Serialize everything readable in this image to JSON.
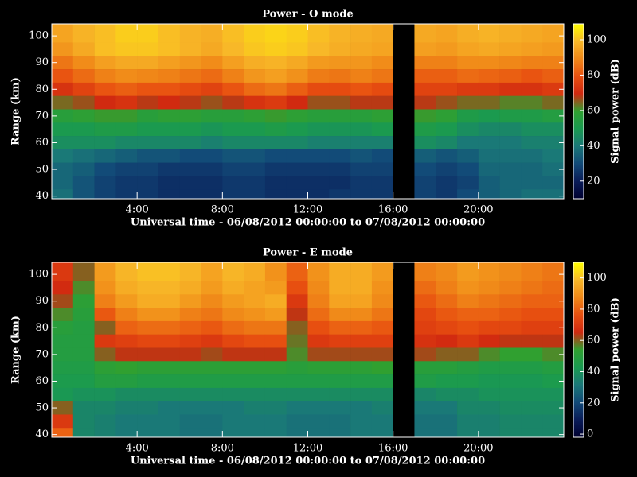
{
  "chart_data": [
    {
      "type": "heatmap",
      "title": "Power - O mode",
      "xlabel": "Universal time - 06/08/2012 00:00:00 to 07/08/2012 00:00:00",
      "ylabel": "Range (km)",
      "colorbar_label": "Signal power (dB)",
      "xlim": [
        0,
        24
      ],
      "xticks": [
        {
          "value": 4,
          "label": "4:00"
        },
        {
          "value": 8,
          "label": "8:00"
        },
        {
          "value": 12,
          "label": "12:00"
        },
        {
          "value": 16,
          "label": "16:00"
        },
        {
          "value": 20,
          "label": "20:00"
        }
      ],
      "ylim": [
        39,
        104.5
      ],
      "yticks": [
        40,
        50,
        60,
        70,
        80,
        90,
        100
      ],
      "zlim": [
        10,
        109
      ],
      "zticks": [
        20,
        40,
        60,
        80,
        100
      ],
      "colormap": [
        "#000030",
        "#0a1c58",
        "#124a78",
        "#1a7878",
        "#1a9a50",
        "#30a030",
        "#d02810",
        "#e85010",
        "#f08818",
        "#f8b828",
        "#ffff00"
      ],
      "x": [
        0.5,
        1.5,
        2.5,
        3.5,
        4.5,
        5.5,
        6.5,
        7.5,
        8.5,
        9.5,
        10.5,
        11.5,
        12.5,
        13.5,
        14.5,
        15.5,
        16.5,
        17.5,
        18.5,
        19.5,
        20.5,
        21.5,
        22.5,
        23.5
      ],
      "y": [
        100,
        95,
        90,
        85,
        80,
        75,
        70,
        65,
        60,
        55,
        50,
        45,
        40
      ],
      "z": [
        [
          95,
          98,
          100,
          102,
          102,
          100,
          98,
          97,
          100,
          102,
          103,
          102,
          100,
          98,
          97,
          96,
          null,
          96,
          95,
          97,
          98,
          97,
          96,
          95
        ],
        [
          92,
          96,
          100,
          101,
          101,
          100,
          98,
          96,
          99,
          101,
          102,
          101,
          99,
          97,
          96,
          95,
          null,
          94,
          93,
          95,
          96,
          95,
          94,
          93
        ],
        [
          86,
          90,
          94,
          96,
          96,
          94,
          92,
          90,
          94,
          97,
          98,
          96,
          93,
          92,
          92,
          90,
          null,
          88,
          88,
          90,
          90,
          89,
          88,
          88
        ],
        [
          80,
          84,
          88,
          90,
          89,
          88,
          86,
          84,
          88,
          92,
          94,
          91,
          87,
          86,
          88,
          86,
          null,
          82,
          82,
          84,
          83,
          82,
          80,
          82
        ],
        [
          72,
          76,
          80,
          82,
          80,
          80,
          78,
          76,
          80,
          84,
          86,
          82,
          78,
          78,
          80,
          78,
          null,
          76,
          76,
          74,
          74,
          72,
          72,
          74
        ],
        [
          64,
          66,
          70,
          72,
          68,
          70,
          68,
          66,
          68,
          72,
          74,
          70,
          66,
          66,
          68,
          68,
          null,
          68,
          66,
          64,
          64,
          62,
          62,
          64
        ],
        [
          56,
          58,
          60,
          60,
          56,
          58,
          58,
          56,
          56,
          58,
          60,
          58,
          56,
          56,
          56,
          58,
          null,
          60,
          58,
          52,
          50,
          52,
          52,
          54
        ],
        [
          50,
          50,
          52,
          52,
          50,
          50,
          50,
          48,
          50,
          50,
          52,
          50,
          48,
          48,
          48,
          50,
          null,
          52,
          50,
          46,
          44,
          44,
          46,
          46
        ],
        [
          46,
          46,
          46,
          44,
          44,
          44,
          44,
          42,
          44,
          44,
          44,
          44,
          42,
          42,
          42,
          42,
          null,
          46,
          44,
          40,
          40,
          40,
          42,
          42
        ],
        [
          40,
          38,
          36,
          34,
          32,
          32,
          30,
          30,
          32,
          32,
          30,
          30,
          30,
          30,
          32,
          30,
          null,
          34,
          32,
          34,
          38,
          38,
          38,
          40
        ],
        [
          36,
          34,
          30,
          28,
          28,
          26,
          26,
          26,
          28,
          28,
          26,
          26,
          26,
          26,
          28,
          28,
          null,
          30,
          28,
          30,
          36,
          36,
          36,
          38
        ],
        [
          36,
          32,
          28,
          26,
          26,
          24,
          24,
          24,
          26,
          26,
          24,
          24,
          24,
          24,
          26,
          26,
          null,
          28,
          26,
          28,
          34,
          36,
          36,
          36
        ],
        [
          38,
          32,
          28,
          26,
          26,
          24,
          24,
          24,
          26,
          26,
          24,
          24,
          24,
          26,
          26,
          26,
          null,
          28,
          26,
          30,
          34,
          36,
          38,
          38
        ]
      ]
    },
    {
      "type": "heatmap",
      "title": "Power - E mode",
      "xlabel": "Universal time - 06/08/2012 00:00:00 to 07/08/2012 00:00:00",
      "ylabel": "Range (km)",
      "colorbar_label": "Signal power (dB)",
      "xlim": [
        0,
        24
      ],
      "xticks": [
        {
          "value": 4,
          "label": "4:00"
        },
        {
          "value": 8,
          "label": "8:00"
        },
        {
          "value": 12,
          "label": "12:00"
        },
        {
          "value": 16,
          "label": "16:00"
        },
        {
          "value": 20,
          "label": "20:00"
        }
      ],
      "ylim": [
        39,
        104.5
      ],
      "yticks": [
        40,
        50,
        60,
        70,
        80,
        90,
        100
      ],
      "zlim": [
        -2,
        110
      ],
      "zticks": [
        0,
        20,
        40,
        60,
        80,
        100
      ],
      "colormap": [
        "#000030",
        "#0a1c58",
        "#124a78",
        "#1a7878",
        "#1a9a50",
        "#30a030",
        "#d02810",
        "#e85010",
        "#f08818",
        "#f8b828",
        "#ffff00"
      ],
      "x": [
        0.5,
        1.5,
        2.5,
        3.5,
        4.5,
        5.5,
        6.5,
        7.5,
        8.5,
        9.5,
        10.5,
        11.5,
        12.5,
        13.5,
        14.5,
        15.5,
        16.5,
        17.5,
        18.5,
        19.5,
        20.5,
        21.5,
        22.5,
        23.5
      ],
      "y": [
        100,
        95,
        90,
        85,
        80,
        75,
        70,
        65,
        60,
        55,
        50,
        45,
        40
      ],
      "z": [
        [
          70,
          60,
          92,
          98,
          100,
          100,
          98,
          94,
          98,
          96,
          90,
          80,
          90,
          96,
          96,
          92,
          null,
          86,
          88,
          92,
          90,
          88,
          86,
          84
        ],
        [
          66,
          56,
          90,
          96,
          98,
          98,
          96,
          92,
          96,
          94,
          92,
          76,
          88,
          96,
          96,
          90,
          null,
          82,
          86,
          90,
          88,
          86,
          84,
          82
        ],
        [
          62,
          52,
          86,
          92,
          96,
          96,
          92,
          88,
          92,
          94,
          96,
          70,
          86,
          94,
          94,
          88,
          null,
          78,
          82,
          86,
          84,
          82,
          80,
          80
        ],
        [
          56,
          50,
          78,
          86,
          90,
          90,
          86,
          84,
          88,
          90,
          92,
          64,
          82,
          88,
          88,
          84,
          null,
          74,
          78,
          80,
          80,
          78,
          76,
          76
        ],
        [
          50,
          48,
          60,
          80,
          82,
          82,
          80,
          78,
          82,
          84,
          84,
          60,
          76,
          80,
          80,
          78,
          null,
          72,
          74,
          76,
          74,
          74,
          72,
          72
        ],
        [
          48,
          48,
          70,
          72,
          74,
          74,
          72,
          70,
          74,
          76,
          76,
          58,
          70,
          72,
          72,
          72,
          null,
          68,
          66,
          70,
          66,
          64,
          64,
          64
        ],
        [
          48,
          48,
          60,
          64,
          64,
          64,
          64,
          62,
          64,
          64,
          64,
          56,
          62,
          62,
          62,
          62,
          null,
          62,
          60,
          60,
          56,
          54,
          54,
          56
        ],
        [
          46,
          46,
          52,
          54,
          52,
          52,
          52,
          52,
          52,
          52,
          52,
          50,
          52,
          52,
          52,
          54,
          null,
          50,
          50,
          48,
          46,
          46,
          46,
          48
        ],
        [
          44,
          44,
          48,
          48,
          46,
          46,
          46,
          46,
          46,
          46,
          46,
          46,
          46,
          46,
          46,
          46,
          null,
          46,
          44,
          44,
          42,
          42,
          42,
          44
        ],
        [
          42,
          40,
          40,
          38,
          38,
          38,
          38,
          38,
          38,
          38,
          38,
          38,
          38,
          38,
          38,
          38,
          null,
          36,
          38,
          38,
          40,
          40,
          40,
          40
        ],
        [
          60,
          36,
          36,
          34,
          34,
          32,
          32,
          32,
          32,
          34,
          34,
          32,
          32,
          32,
          32,
          34,
          null,
          32,
          32,
          36,
          36,
          38,
          38,
          38
        ],
        [
          70,
          36,
          34,
          32,
          32,
          32,
          30,
          30,
          32,
          32,
          32,
          30,
          30,
          30,
          32,
          32,
          null,
          30,
          30,
          34,
          34,
          36,
          36,
          36
        ],
        [
          80,
          36,
          34,
          32,
          32,
          32,
          30,
          30,
          32,
          32,
          32,
          30,
          30,
          30,
          32,
          32,
          null,
          30,
          30,
          34,
          34,
          36,
          36,
          36
        ]
      ]
    }
  ]
}
